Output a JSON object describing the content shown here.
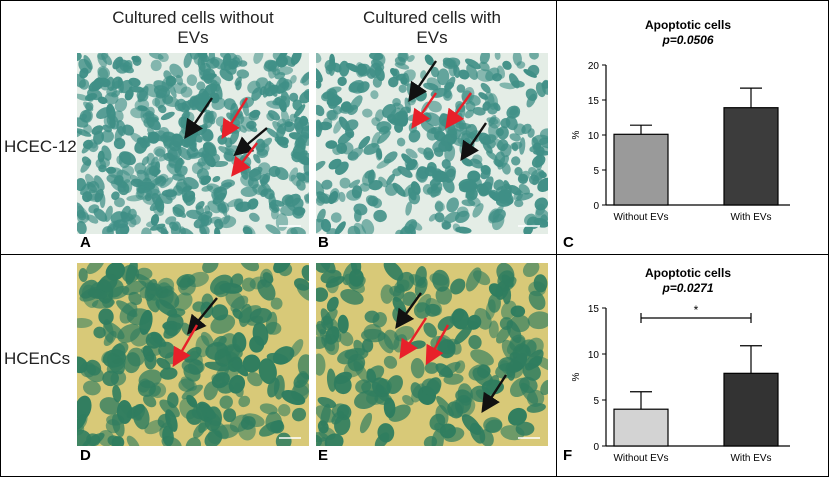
{
  "columns": {
    "without": [
      "Cultured cells without",
      "EVs"
    ],
    "with": [
      "Cultured cells with",
      "EVs"
    ]
  },
  "rows": {
    "top": "HCEC-12",
    "bottom": "HCEnCs"
  },
  "panel_letters": {
    "a": "A",
    "b": "B",
    "c": "C",
    "d": "D",
    "e": "E",
    "f": "F"
  },
  "colors": {
    "hcec_background": "#e4ede6",
    "hcec_cells": "#3f8f86",
    "hcenc_background": "#d8c978",
    "hcenc_cells": "#2f7d5f",
    "arrow_red": "#e8202a",
    "arrow_black": "#111111",
    "bar_without_c": "#9a9a9a",
    "bar_with_c": "#3c3c3c",
    "bar_without_f": "#d3d3d3",
    "bar_with_f": "#333333"
  },
  "chart_data": [
    {
      "type": "bar",
      "panel": "C",
      "title": "Apoptotic cells",
      "subtitle": "p=0.0506",
      "categories": [
        "Without EVs",
        "With EVs"
      ],
      "values": [
        10.1,
        13.9
      ],
      "errors": [
        1.3,
        2.8
      ],
      "ylabel": "%",
      "ylim": [
        0,
        20
      ],
      "yticks": [
        0,
        5,
        10,
        15,
        20
      ],
      "ytick_labels": [
        "0",
        "5",
        "10",
        "15",
        "20"
      ],
      "significance": ""
    },
    {
      "type": "bar",
      "panel": "F",
      "title": "Apoptotic cells",
      "subtitle": "p=0.0271",
      "categories": [
        "Without EVs",
        "With EVs"
      ],
      "values": [
        4.0,
        7.9
      ],
      "errors": [
        1.9,
        3.0
      ],
      "ylabel": "%",
      "ylim": [
        0,
        15
      ],
      "yticks": [
        0,
        5,
        10,
        15
      ],
      "ytick_labels": [
        "0",
        "5",
        "10",
        "15"
      ],
      "significance": "*"
    }
  ]
}
